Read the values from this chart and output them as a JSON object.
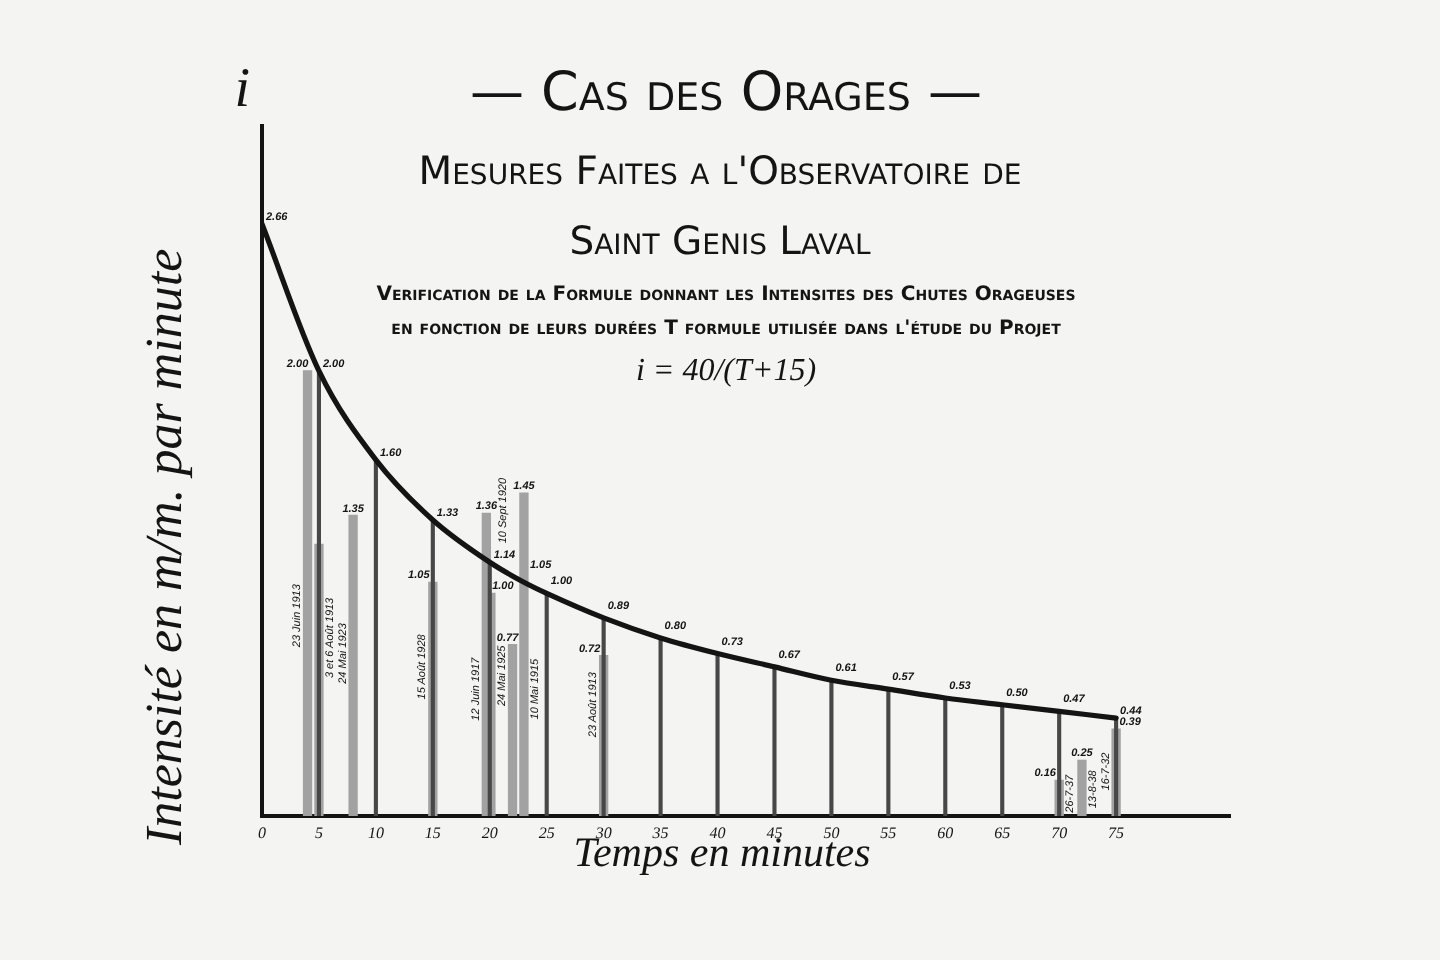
{
  "chart_data": {
    "type": "bar",
    "title": "— Cas des Orages —",
    "subtitle": "Mesures Faites a l'Observatoire de Saint Genis Laval",
    "xlabel": "Temps en minutes",
    "ylabel": "Intensité en m/m. par minute",
    "annotations": [
      "i",
      "Verification de la Formule donnant les Intensites des Chutes Orageuses en fonction de leurs durées T formule utilisée dans l'étude du Projet",
      "i = 40/(T+15)",
      {
        "text": "23 Juin 1913",
        "x": 4,
        "y": 0.9
      },
      {
        "text": "3 et 6 Août 1913",
        "x": 5,
        "y": 0.8
      },
      {
        "text": "24 Mai 1923",
        "x": 8,
        "y": 0.73
      },
      {
        "text": "15 Août 1928",
        "x": 15,
        "y": 0.67
      },
      {
        "text": "10 Sept 1920",
        "x": 19.7,
        "y": 1.3
      },
      {
        "text": "12 Juin 1917",
        "x": 20.1,
        "y": 0.57
      },
      {
        "text": "24 Mai 1925",
        "x": 22,
        "y": 0.63
      },
      {
        "text": "10 Mai 1915",
        "x": 23,
        "y": 0.57
      },
      {
        "text": "23 Août 1913",
        "x": 30,
        "y": 0.5
      },
      {
        "text": "26-7-37",
        "x": 70,
        "y": 0.1
      },
      {
        "text": "13-8-38",
        "x": 72,
        "y": 0.12
      },
      {
        "text": "16-7-32",
        "x": 75,
        "y": 0.2
      }
    ],
    "xlim": [
      0,
      85
    ],
    "ylim": [
      0,
      3.1
    ],
    "xticks": [
      0,
      5,
      10,
      15,
      20,
      25,
      30,
      35,
      40,
      45,
      50,
      55,
      60,
      65,
      70,
      75
    ],
    "tick_labels": "x",
    "series": [
      {
        "color": "#a2a2a2",
        "x": [
          4,
          5,
          8,
          15,
          19.7,
          20.1,
          22,
          23,
          30,
          70,
          72,
          75
        ],
        "values": [
          2.0,
          1.22,
          1.35,
          1.05,
          1.36,
          1.0,
          0.77,
          1.45,
          0.72,
          0.16,
          0.25,
          0.39
        ],
        "value_labels": [
          "2.00",
          null,
          "1.35",
          "1.05",
          "1.36",
          "1.00",
          "0.77",
          "1.45",
          "0.72",
          "0.16",
          "0.25",
          "0.39"
        ]
      },
      {
        "color": "#474747",
        "x": [
          5,
          10,
          15,
          20,
          25,
          30,
          35,
          40,
          45,
          50,
          55,
          60,
          65,
          70,
          75
        ],
        "values": [
          2.0,
          1.6,
          1.33,
          1.14,
          1.0,
          0.89,
          0.8,
          0.73,
          0.67,
          0.61,
          0.57,
          0.53,
          0.5,
          0.47,
          0.44
        ]
      },
      {
        "type": "line",
        "color": "#141414",
        "x": [
          0,
          5,
          10,
          15,
          20,
          23,
          25,
          30,
          35,
          40,
          45,
          50,
          55,
          60,
          65,
          70,
          75
        ],
        "values": [
          2.66,
          2.0,
          1.6,
          1.33,
          1.14,
          1.05,
          1.0,
          0.89,
          0.8,
          0.73,
          0.67,
          0.61,
          0.57,
          0.53,
          0.5,
          0.47,
          0.44
        ],
        "value_labels": [
          "2.66",
          "2.00",
          "1.60",
          "1.33",
          "1.14",
          "1.05",
          "1.00",
          "0.89",
          "0.80",
          "0.73",
          "0.67",
          "0.61",
          "0.57",
          "0.53",
          "0.50",
          "0.47",
          "0.44"
        ]
      }
    ]
  }
}
